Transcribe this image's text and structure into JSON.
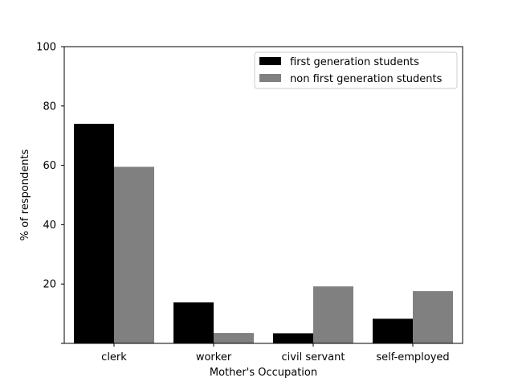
{
  "chart_data": {
    "type": "bar",
    "title": "",
    "xlabel": "Mother's Occupation",
    "ylabel": "% of respondents",
    "categories": [
      "clerk",
      "worker",
      "civil servant",
      "self-employed"
    ],
    "series": [
      {
        "name": "first generation students",
        "color": "#000000",
        "values": [
          74,
          13.8,
          3.4,
          8.3
        ]
      },
      {
        "name": "non first generation students",
        "color": "#808080",
        "values": [
          59.5,
          3.5,
          19.2,
          17.6
        ]
      }
    ],
    "ylim": [
      0,
      100
    ],
    "yticks": [
      "20",
      "40",
      "60",
      "80",
      "100"
    ],
    "grid": false,
    "legend_position": "top-right"
  }
}
